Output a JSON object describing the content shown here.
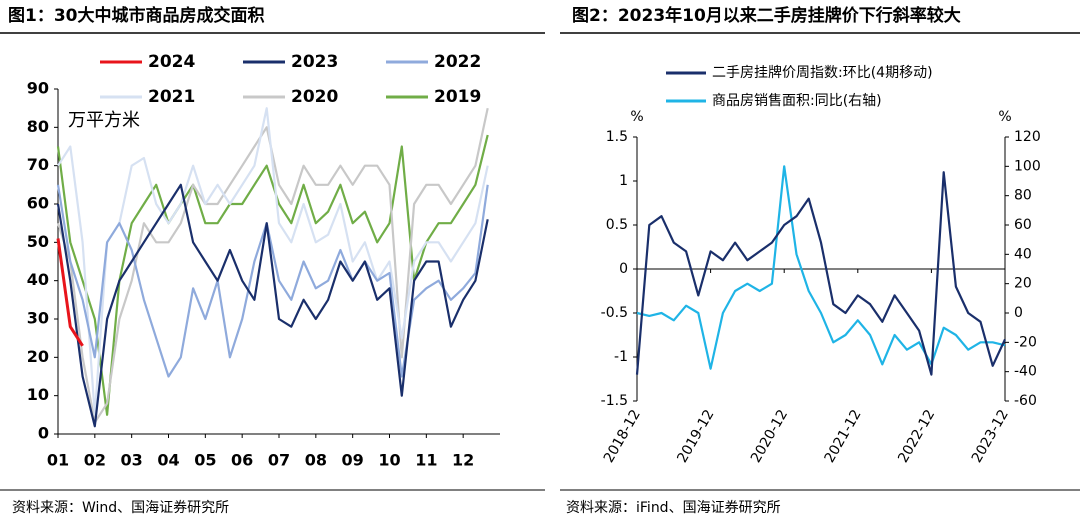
{
  "chart_data": [
    {
      "type": "line",
      "title": "图1：30大中城市商品房成交面积",
      "annotation": "万平方米",
      "source": "资料来源：Wind、国海证券研究所",
      "categories": [
        "01",
        null,
        null,
        "02",
        null,
        null,
        "03",
        null,
        null,
        "04",
        null,
        null,
        "05",
        null,
        null,
        "06",
        null,
        null,
        "07",
        null,
        null,
        "08",
        null,
        null,
        "09",
        null,
        null,
        "10",
        null,
        null,
        "11",
        null,
        null,
        "12",
        null,
        null
      ],
      "ylim": [
        0,
        90
      ],
      "yticks": [
        0,
        10,
        20,
        30,
        40,
        50,
        60,
        70,
        80,
        90
      ],
      "grid": false,
      "series": [
        {
          "name": "2024",
          "color": "#e8141b",
          "values": [
            51,
            28,
            23,
            null,
            null,
            null,
            null,
            null,
            null,
            null,
            null,
            null,
            null,
            null,
            null,
            null,
            null,
            null,
            null,
            null,
            null,
            null,
            null,
            null,
            null,
            null,
            null,
            null,
            null,
            null,
            null,
            null,
            null,
            null,
            null,
            null
          ]
        },
        {
          "name": "2023",
          "color": "#1a2f6b",
          "values": [
            60,
            40,
            15,
            2,
            30,
            40,
            45,
            50,
            55,
            60,
            65,
            50,
            45,
            40,
            48,
            40,
            35,
            55,
            30,
            28,
            35,
            30,
            35,
            45,
            40,
            45,
            35,
            38,
            10,
            40,
            45,
            45,
            28,
            35,
            40,
            56
          ]
        },
        {
          "name": "2022",
          "color": "#8faadc",
          "values": [
            65,
            45,
            35,
            20,
            50,
            55,
            48,
            35,
            25,
            15,
            20,
            38,
            30,
            40,
            20,
            30,
            45,
            55,
            40,
            35,
            45,
            38,
            40,
            48,
            40,
            45,
            40,
            42,
            15,
            35,
            38,
            40,
            35,
            38,
            42,
            65
          ]
        },
        {
          "name": "2021",
          "color": "#d6e1f2",
          "values": [
            70,
            75,
            50,
            5,
            50,
            55,
            70,
            72,
            60,
            55,
            60,
            70,
            60,
            65,
            60,
            65,
            70,
            85,
            55,
            50,
            60,
            50,
            52,
            60,
            45,
            50,
            40,
            45,
            25,
            45,
            50,
            50,
            45,
            50,
            55,
            70
          ]
        },
        {
          "name": "2020",
          "color": "#c8c8c8",
          "values": [
            55,
            45,
            20,
            3,
            8,
            30,
            40,
            55,
            50,
            50,
            55,
            65,
            60,
            60,
            65,
            70,
            75,
            80,
            65,
            60,
            70,
            65,
            65,
            70,
            65,
            70,
            70,
            65,
            20,
            60,
            65,
            65,
            60,
            65,
            70,
            85
          ]
        },
        {
          "name": "2019",
          "color": "#70ad47",
          "values": [
            75,
            50,
            40,
            30,
            5,
            40,
            55,
            60,
            65,
            55,
            60,
            65,
            55,
            55,
            60,
            60,
            65,
            70,
            60,
            55,
            65,
            55,
            58,
            65,
            55,
            58,
            50,
            55,
            75,
            40,
            50,
            55,
            55,
            60,
            65,
            78
          ]
        }
      ]
    },
    {
      "type": "line",
      "title": "图2：2023年10月以来二手房挂牌价下行斜率较大",
      "source": "资料来源：iFind、国海证券研究所",
      "ylabel": "%",
      "y2label": "%",
      "categories": [
        "2018-12",
        null,
        null,
        null,
        null,
        null,
        "2019-12",
        null,
        null,
        null,
        null,
        null,
        "2020-12",
        null,
        null,
        null,
        null,
        null,
        "2021-12",
        null,
        null,
        null,
        null,
        null,
        "2022-12",
        null,
        null,
        null,
        null,
        null,
        "2023-12"
      ],
      "ylim": [
        -1.5,
        1.5
      ],
      "yticks": [
        -1.5,
        -1,
        -0.5,
        0,
        0.5,
        1,
        1.5
      ],
      "y2lim": [
        -60,
        120
      ],
      "y2ticks": [
        -60,
        -40,
        -20,
        0,
        20,
        40,
        60,
        80,
        100,
        120
      ],
      "series": [
        {
          "name": "二手房挂牌价周指数:环比(4期移动)",
          "color": "#1a2f6b",
          "values": [
            -1.2,
            0.5,
            0.6,
            0.3,
            0.2,
            -0.3,
            0.2,
            0.1,
            0.3,
            0.1,
            0.2,
            0.3,
            0.5,
            0.6,
            0.8,
            0.3,
            -0.4,
            -0.5,
            -0.3,
            -0.4,
            -0.6,
            -0.3,
            -0.5,
            -0.7,
            -1.2,
            1.1,
            -0.2,
            -0.5,
            -0.6,
            -1.1,
            -0.8
          ]
        },
        {
          "name": "商品房销售面积:同比(右轴)",
          "color": "#1fb4e6",
          "axis": "y2",
          "values": [
            0,
            -2,
            0,
            -5,
            5,
            0,
            -38,
            0,
            15,
            20,
            15,
            20,
            100,
            40,
            15,
            0,
            -20,
            -15,
            -5,
            -15,
            -35,
            -15,
            -25,
            -20,
            -35,
            -10,
            -15,
            -25,
            -20,
            -20,
            -22
          ]
        }
      ]
    }
  ]
}
